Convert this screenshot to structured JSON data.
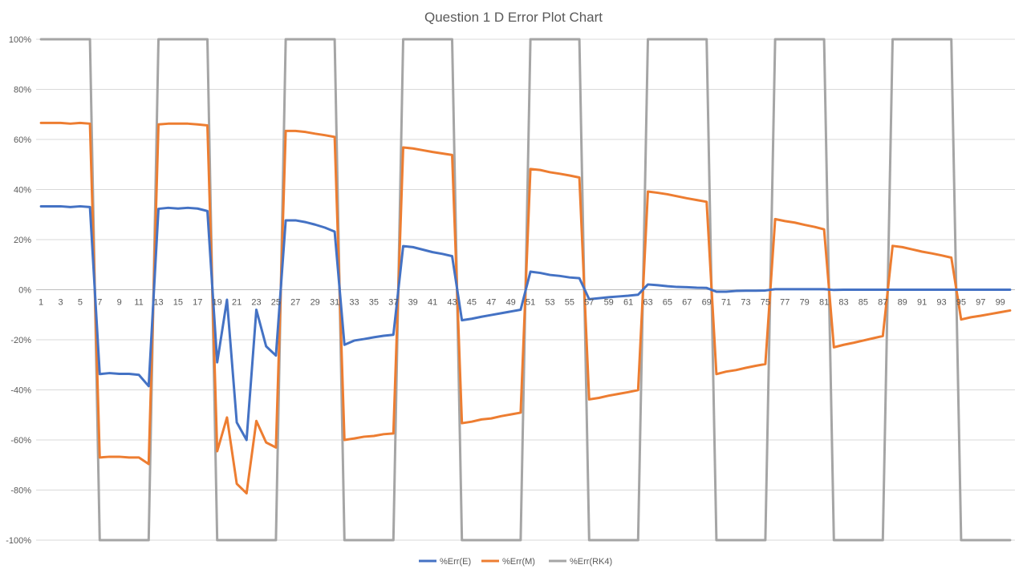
{
  "chart_data": {
    "type": "line",
    "title": "Question 1 D Error Plot Chart",
    "xlabel": "",
    "ylabel": "",
    "x": [
      1,
      2,
      3,
      4,
      5,
      6,
      7,
      8,
      9,
      10,
      11,
      12,
      13,
      14,
      15,
      16,
      17,
      18,
      19,
      20,
      21,
      22,
      23,
      24,
      25,
      26,
      27,
      28,
      29,
      30,
      31,
      32,
      33,
      34,
      35,
      36,
      37,
      38,
      39,
      40,
      41,
      42,
      43,
      44,
      45,
      46,
      47,
      48,
      49,
      50,
      51,
      52,
      53,
      54,
      55,
      56,
      57,
      58,
      59,
      60,
      61,
      62,
      63,
      64,
      65,
      66,
      67,
      68,
      69,
      70,
      71,
      72,
      73,
      74,
      75,
      76,
      77,
      78,
      79,
      80,
      81,
      82,
      83,
      84,
      85,
      86,
      87,
      88,
      89,
      90,
      91,
      92,
      93,
      94,
      95,
      96,
      97,
      98,
      99,
      100
    ],
    "x_tick_labels": [
      "1",
      "3",
      "5",
      "7",
      "9",
      "11",
      "13",
      "15",
      "17",
      "19",
      "21",
      "23",
      "25",
      "27",
      "29",
      "31",
      "33",
      "35",
      "37",
      "39",
      "41",
      "43",
      "45",
      "47",
      "49",
      "51",
      "53",
      "55",
      "57",
      "59",
      "61",
      "63",
      "65",
      "67",
      "69",
      "71",
      "73",
      "75",
      "77",
      "79",
      "81",
      "83",
      "85",
      "87",
      "89",
      "91",
      "93",
      "95",
      "97",
      "99"
    ],
    "y_tick_labels": [
      "-100%",
      "-80%",
      "-60%",
      "-40%",
      "-20%",
      "0%",
      "20%",
      "40%",
      "60%",
      "80%",
      "100%"
    ],
    "ylim": [
      -100,
      100
    ],
    "y_unit": "%",
    "grid": true,
    "legend_position": "bottom",
    "series": [
      {
        "name": "%Err(E)",
        "color": "#4472C4",
        "values": [
          33.3,
          33.3,
          33.3,
          33,
          33.3,
          33,
          -33.7,
          -33.3,
          -33.6,
          -33.6,
          -34,
          -38.5,
          32.3,
          32.7,
          32.4,
          32.7,
          32.4,
          31.4,
          -29,
          -4,
          -53,
          -60,
          -8,
          -22.6,
          -26.3,
          27.7,
          27.7,
          27,
          26,
          24.8,
          23.2,
          -22,
          -20.3,
          -19.7,
          -19,
          -18.4,
          -18,
          17.4,
          17,
          16,
          15,
          14.3,
          13.4,
          -12.2,
          -11.6,
          -10.8,
          -10.1,
          -9.4,
          -8.7,
          -8,
          7.2,
          6.7,
          5.9,
          5.5,
          4.9,
          4.6,
          -3.8,
          -3.4,
          -3,
          -2.7,
          -2.4,
          -2,
          2.1,
          1.8,
          1.4,
          1.1,
          1,
          0.8,
          0.7,
          -0.8,
          -0.8,
          -0.5,
          -0.4,
          -0.4,
          -0.3,
          0.2,
          0.2,
          0.2,
          0.2,
          0.2,
          0.2,
          -0.1,
          0,
          0,
          0,
          0,
          0,
          0,
          0,
          0,
          0,
          0,
          0,
          0,
          0,
          0,
          0,
          0,
          0,
          0
        ]
      },
      {
        "name": "%Err(M)",
        "color": "#ED7D31",
        "values": [
          66.6,
          66.6,
          66.6,
          66.3,
          66.6,
          66.3,
          -67,
          -66.7,
          -66.7,
          -67,
          -67,
          -69.6,
          66,
          66.3,
          66.3,
          66.3,
          66,
          65.6,
          -64.5,
          -51,
          -77.5,
          -81.3,
          -52.4,
          -61,
          -63,
          63.4,
          63.4,
          63,
          62.3,
          61.7,
          61,
          -60,
          -59.4,
          -58.7,
          -58.4,
          -57.7,
          -57.4,
          56.8,
          56.4,
          55.7,
          55,
          54.4,
          53.8,
          -53.3,
          -52.7,
          -51.8,
          -51.4,
          -50.5,
          -49.8,
          -49.1,
          48.2,
          47.8,
          46.9,
          46.3,
          45.6,
          44.8,
          -43.8,
          -43.2,
          -42.3,
          -41.6,
          -40.9,
          -40.1,
          39.2,
          38.7,
          38.1,
          37.3,
          36.5,
          35.8,
          35.1,
          -33.7,
          -32.7,
          -32.1,
          -31.2,
          -30.4,
          -29.7,
          28.2,
          27.4,
          26.8,
          25.9,
          25.1,
          24.1,
          -23,
          -22,
          -21.2,
          -20.3,
          -19.4,
          -18.5,
          17.5,
          17,
          16.1,
          15.2,
          14.5,
          13.7,
          12.8,
          -11.9,
          -11,
          -10.4,
          -9.7,
          -9,
          -8.3
        ]
      },
      {
        "name": "%Err(RK4)",
        "color": "#A5A5A5",
        "values": [
          100,
          100,
          100,
          100,
          100,
          100,
          -100,
          -100,
          -100,
          -100,
          -100,
          -100,
          100,
          100,
          100,
          100,
          100,
          100,
          -100,
          -100,
          -100,
          -100,
          -100,
          -100,
          -100,
          100,
          100,
          100,
          100,
          100,
          100,
          -100,
          -100,
          -100,
          -100,
          -100,
          -100,
          100,
          100,
          100,
          100,
          100,
          100,
          -100,
          -100,
          -100,
          -100,
          -100,
          -100,
          -100,
          100,
          100,
          100,
          100,
          100,
          100,
          -100,
          -100,
          -100,
          -100,
          -100,
          -100,
          100,
          100,
          100,
          100,
          100,
          100,
          100,
          -100,
          -100,
          -100,
          -100,
          -100,
          -100,
          100,
          100,
          100,
          100,
          100,
          100,
          -100,
          -100,
          -100,
          -100,
          -100,
          -100,
          100,
          100,
          100,
          100,
          100,
          100,
          100,
          -100,
          -100,
          -100,
          -100,
          -100,
          -100
        ]
      }
    ]
  }
}
